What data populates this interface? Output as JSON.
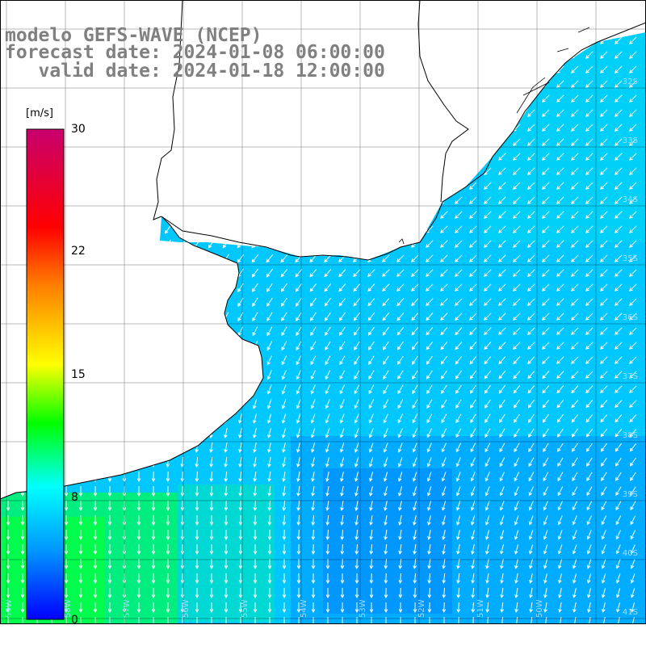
{
  "header": {
    "model": "modelo GEFS-WAVE (NCEP)",
    "forecast": "forecast date: 2024-01-08 06:00:00",
    "valid": "   valid date: 2024-01-18 12:00:00"
  },
  "colorbar": {
    "unit": "[m/s]",
    "ticks": [
      "30",
      "22",
      "15",
      "8",
      "0"
    ],
    "stops": [
      "#0000ff",
      "#0096ff",
      "#00ffff",
      "#00ff00",
      "#ffff00",
      "#ff8000",
      "#ff0000",
      "#c8006e"
    ]
  },
  "lat_labels": [
    "32S",
    "33S",
    "34S",
    "35S",
    "36S",
    "37S",
    "38S",
    "39S",
    "40S",
    "41S"
  ],
  "lon_labels": [
    "59W",
    "58W",
    "57W",
    "56W",
    "55W",
    "54W",
    "53W",
    "52W",
    "51W",
    "50W"
  ],
  "colors": {
    "ocean_base": "#00c8ff",
    "ocean_deep": "#0096ff",
    "ocean_warm": "#00e6e6",
    "wind_land": "#00e600",
    "coast": "#000000",
    "grid": "#000000"
  }
}
